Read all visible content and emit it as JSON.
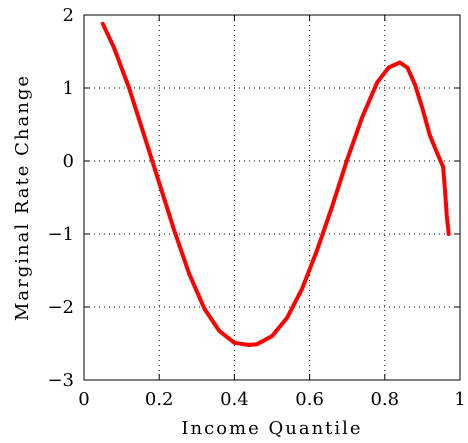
{
  "chart_data": {
    "type": "line",
    "title": "",
    "xlabel": "Income Quantile",
    "ylabel": "Marginal Rate Change",
    "xlim": [
      0,
      1
    ],
    "ylim": [
      -3,
      2
    ],
    "xticks": [
      "0",
      "0.2",
      "0.4",
      "0.6",
      "0.8",
      "1"
    ],
    "yticks": [
      "2",
      "1",
      "0",
      "−1",
      "−2",
      "−3"
    ],
    "grid": true,
    "grid_style": "dotted",
    "line_color": "#ff0000",
    "series": [
      {
        "x": [
          0.05,
          0.08,
          0.12,
          0.16,
          0.2,
          0.24,
          0.28,
          0.32,
          0.36,
          0.4,
          0.44,
          0.46,
          0.5,
          0.54,
          0.58,
          0.62,
          0.66,
          0.7,
          0.74,
          0.78,
          0.81,
          0.84,
          0.86,
          0.88,
          0.9,
          0.92,
          0.94,
          0.955,
          0.96,
          0.965,
          0.97
        ],
        "y": [
          1.88,
          1.55,
          1.0,
          0.35,
          -0.3,
          -0.95,
          -1.55,
          -2.02,
          -2.33,
          -2.49,
          -2.52,
          -2.51,
          -2.4,
          -2.15,
          -1.75,
          -1.22,
          -0.62,
          0.02,
          0.6,
          1.08,
          1.28,
          1.35,
          1.28,
          1.05,
          0.72,
          0.35,
          0.1,
          -0.08,
          -0.4,
          -0.75,
          -1.0
        ]
      }
    ]
  }
}
